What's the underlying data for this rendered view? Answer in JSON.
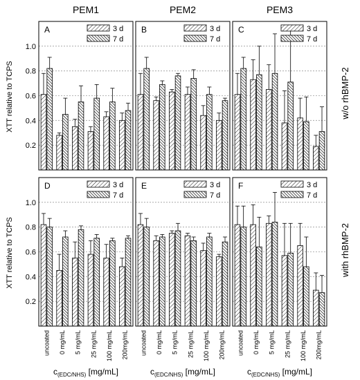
{
  "columns": [
    "PEM1",
    "PEM2",
    "PEM3"
  ],
  "row_labels": [
    "w/o rhBMP-2",
    "with rhBMP-2"
  ],
  "ylabel": "XTT relative to TCPS",
  "xlabel_main": "c",
  "xlabel_sub": "(EDC/NHS)",
  "xlabel_unit": " [mg/mL]",
  "categories": [
    "uncoated",
    "0 mg/mL",
    "5 mg/mL",
    "25 mg/mL",
    "100 mg/mL",
    "200mg/mL"
  ],
  "legend": [
    "3 d",
    "7 d"
  ],
  "yticks": [
    "0.2",
    "0.4",
    "0.6",
    "0.8",
    "1.0"
  ],
  "chart_data": [
    {
      "type": "bar",
      "panel": "A",
      "column": "PEM1",
      "row": "w/o rhBMP-2",
      "ylim": [
        0,
        1.2
      ],
      "series": [
        {
          "name": "3 d",
          "values": [
            0.61,
            0.28,
            0.35,
            0.31,
            0.43,
            0.4
          ],
          "errors": [
            0.17,
            0.02,
            0.06,
            0.04,
            0.04,
            0.06
          ]
        },
        {
          "name": "7 d",
          "values": [
            0.82,
            0.45,
            0.55,
            0.58,
            0.55,
            0.48
          ],
          "errors": [
            0.09,
            0.13,
            0.13,
            0.11,
            0.11,
            0.06
          ]
        }
      ]
    },
    {
      "type": "bar",
      "panel": "B",
      "column": "PEM2",
      "row": "w/o rhBMP-2",
      "ylim": [
        0,
        1.2
      ],
      "series": [
        {
          "name": "3 d",
          "values": [
            0.61,
            0.56,
            0.63,
            0.61,
            0.44,
            0.4
          ],
          "errors": [
            0.17,
            0.03,
            0.02,
            0.06,
            0.08,
            0.06
          ]
        },
        {
          "name": "7 d",
          "values": [
            0.82,
            0.69,
            0.76,
            0.74,
            0.61,
            0.56
          ],
          "errors": [
            0.09,
            0.03,
            0.02,
            0.07,
            0.06,
            0.02
          ]
        }
      ]
    },
    {
      "type": "bar",
      "panel": "C",
      "column": "PEM3",
      "row": "w/o rhBMP-2",
      "ylim": [
        0,
        1.2
      ],
      "series": [
        {
          "name": "3 d",
          "values": [
            0.61,
            0.73,
            0.65,
            0.38,
            0.42,
            0.19
          ],
          "errors": [
            0.17,
            0.16,
            0.2,
            0.26,
            0.16,
            0.09
          ]
        },
        {
          "name": "7 d",
          "values": [
            0.82,
            0.77,
            0.78,
            0.71,
            0.39,
            0.31
          ],
          "errors": [
            0.09,
            0.23,
            0.32,
            0.43,
            0.2,
            0.2
          ]
        }
      ]
    },
    {
      "type": "bar",
      "panel": "D",
      "column": "PEM1",
      "row": "with rhBMP-2",
      "ylim": [
        0,
        1.2
      ],
      "series": [
        {
          "name": "3 d",
          "values": [
            0.82,
            0.45,
            0.55,
            0.58,
            0.55,
            0.48
          ],
          "errors": [
            0.09,
            0.13,
            0.13,
            0.11,
            0.11,
            0.07
          ]
        },
        {
          "name": "7 d",
          "values": [
            0.8,
            0.72,
            0.78,
            0.71,
            0.69,
            0.71
          ],
          "errors": [
            0.07,
            0.05,
            0.03,
            0.03,
            0.02,
            0.02
          ]
        }
      ]
    },
    {
      "type": "bar",
      "panel": "E",
      "column": "PEM2",
      "row": "with rhBMP-2",
      "ylim": [
        0,
        1.2
      ],
      "series": [
        {
          "name": "3 d",
          "values": [
            0.82,
            0.69,
            0.75,
            0.73,
            0.61,
            0.56
          ],
          "errors": [
            0.09,
            0.04,
            0.02,
            0.02,
            0.06,
            0.02
          ]
        },
        {
          "name": "7 d",
          "values": [
            0.8,
            0.72,
            0.77,
            0.69,
            0.72,
            0.68
          ],
          "errors": [
            0.07,
            0.02,
            0.06,
            0.03,
            0.03,
            0.04
          ]
        }
      ]
    },
    {
      "type": "bar",
      "panel": "F",
      "column": "PEM3",
      "row": "with rhBMP-2",
      "ylim": [
        0,
        1.2
      ],
      "series": [
        {
          "name": "3 d",
          "values": [
            0.82,
            0.82,
            0.83,
            0.57,
            0.65,
            0.29
          ],
          "errors": [
            0.15,
            0.16,
            0.06,
            0.26,
            0.18,
            0.14
          ]
        },
        {
          "name": "7 d",
          "values": [
            0.8,
            0.64,
            0.84,
            0.59,
            0.48,
            0.27
          ],
          "errors": [
            0.17,
            0.24,
            0.24,
            0.24,
            0.24,
            0.14
          ]
        }
      ]
    }
  ]
}
